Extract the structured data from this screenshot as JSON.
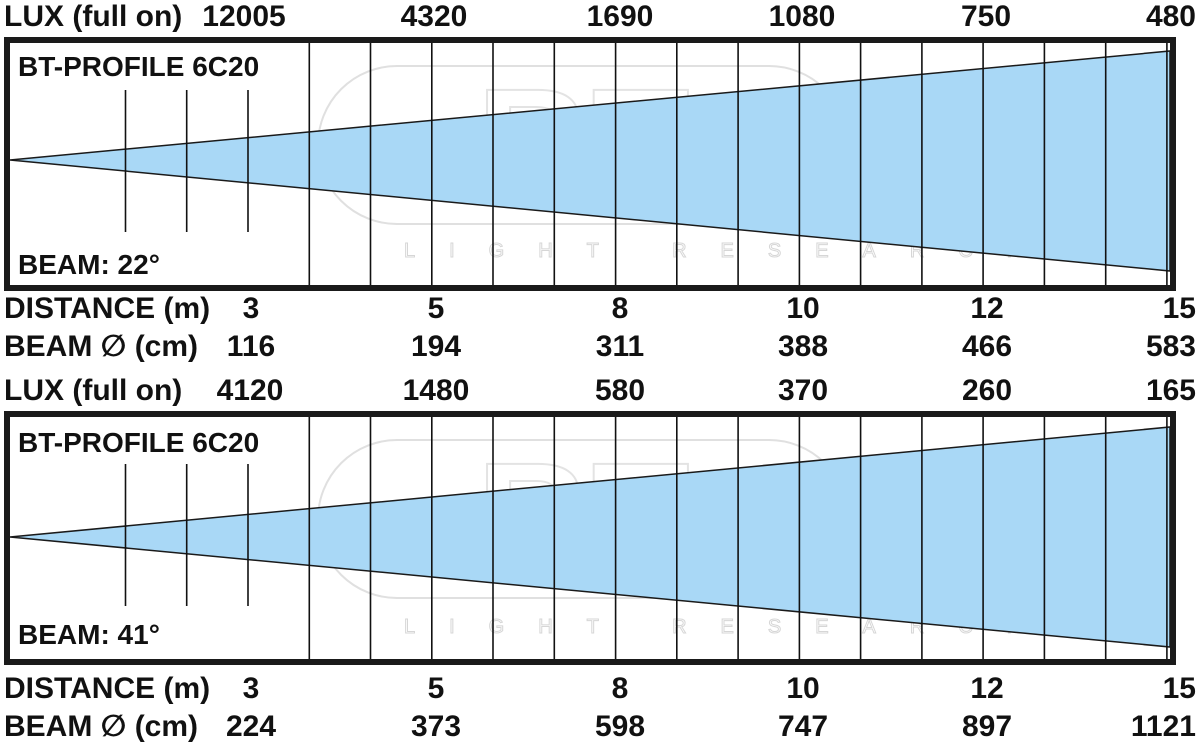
{
  "labels": {
    "lux": "LUX (full on)",
    "distance": "DISTANCE (m)",
    "beam_diameter": "BEAM ∅ (cm)"
  },
  "watermark": {
    "logo": "BT",
    "text": "LIGHT RESEARCH"
  },
  "colors": {
    "beam": "#a9d8f6",
    "frame": "#1a1a1a",
    "line": "#111111"
  },
  "chart_data": [
    {
      "type": "diagram",
      "title": "BT-PROFILE 6C20",
      "beam_label": "BEAM: 22°",
      "beam_angle_deg": 22,
      "distance_m": [
        "3",
        "5",
        "8",
        "10",
        "12",
        "15"
      ],
      "lux_full_on": [
        "12005",
        "4320",
        "1690",
        "1080",
        "750",
        "480"
      ],
      "beam_diameter_cm": [
        "116",
        "194",
        "311",
        "388",
        "466",
        "583"
      ]
    },
    {
      "type": "diagram",
      "title": "BT-PROFILE 6C20",
      "beam_label": "BEAM: 41°",
      "beam_angle_deg": 41,
      "distance_m": [
        "3",
        "5",
        "8",
        "10",
        "12",
        "15"
      ],
      "lux_full_on": [
        "4120",
        "1480",
        "580",
        "370",
        "260",
        "165"
      ],
      "beam_diameter_cm": [
        "224",
        "373",
        "598",
        "747",
        "897",
        "1121"
      ]
    }
  ]
}
